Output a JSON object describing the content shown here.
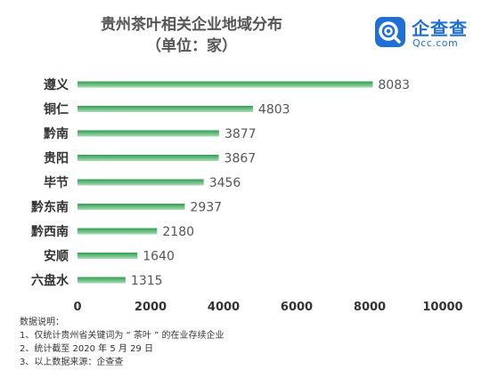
{
  "brand": {
    "name": "企查查",
    "domain": "Qcc.com",
    "accent": "#1f6fd6"
  },
  "notes": {
    "heading": "数据说明：",
    "items": [
      "1、仅统计贵州省关键词为 “ 茶叶 ” 的在业存续企业",
      "2、统计截至 2020 年 5 月 29 日",
      "3、以上数据来源：企查查"
    ]
  },
  "chart_data": {
    "type": "bar",
    "orientation": "horizontal",
    "title": "贵州茶叶相关企业地域分布",
    "subtitle": "（单位：家）",
    "categories": [
      "遵义",
      "铜仁",
      "黔南",
      "贵阳",
      "毕节",
      "黔东南",
      "黔西南",
      "安顺",
      "六盘水"
    ],
    "values": [
      8083,
      4803,
      3877,
      3867,
      3456,
      2937,
      2180,
      1640,
      1315
    ],
    "xticks": [
      "0",
      "2000",
      "4000",
      "6000",
      "8000",
      "10000"
    ],
    "xlim": [
      0,
      10000
    ],
    "grid": false,
    "bar_color_start": "#2e9e4f",
    "bar_color_end": "#a9dcb6"
  }
}
